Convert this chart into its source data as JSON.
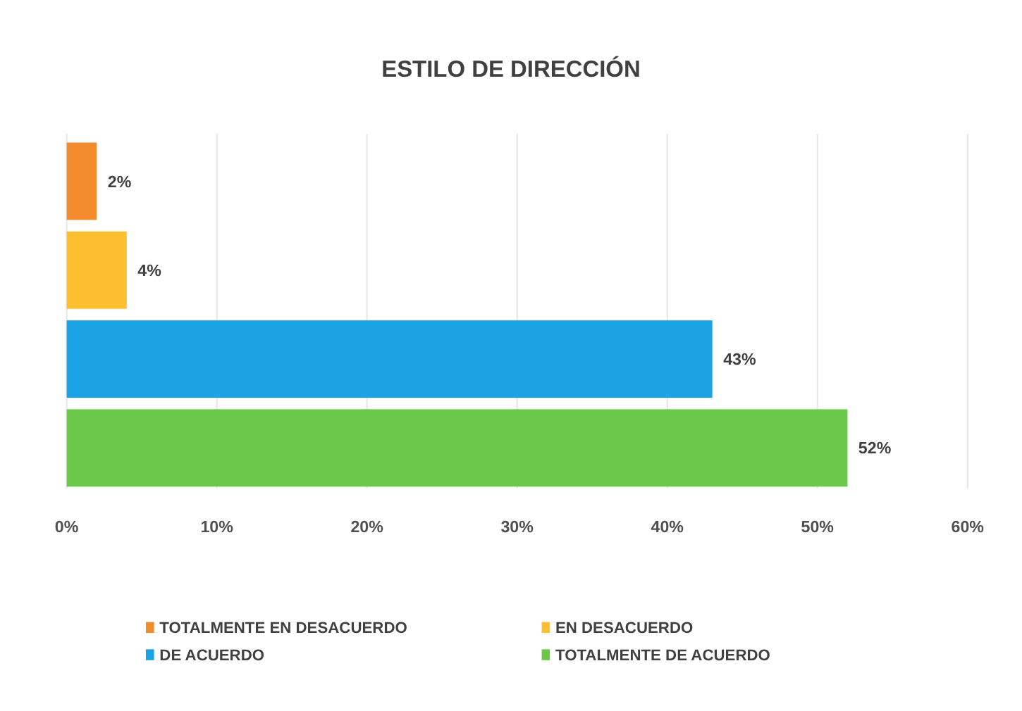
{
  "chart_data": {
    "type": "bar",
    "title": "ESTILO DE DIRECCIÓN",
    "orientation": "horizontal",
    "categories": [
      null,
      null,
      null,
      null
    ],
    "series": [
      {
        "name": "TOTALMENTE EN DESACUERDO",
        "color": "#f28a2e",
        "values": [
          2,
          null,
          null,
          null
        ],
        "value_labels": [
          "2%",
          null,
          null,
          null
        ]
      },
      {
        "name": "EN DESACUERDO",
        "color": "#fbbf2f",
        "values": [
          null,
          4,
          null,
          null
        ],
        "value_labels": [
          null,
          "4%",
          null,
          null
        ]
      },
      {
        "name": "DE ACUERDO",
        "color": "#1ca3e6",
        "values": [
          null,
          null,
          43,
          null
        ],
        "value_labels": [
          null,
          null,
          "43%",
          null
        ]
      },
      {
        "name": "TOTALMENTE DE ACUERDO",
        "color": "#6cc84a",
        "values": [
          null,
          null,
          null,
          52
        ],
        "value_labels": [
          null,
          null,
          null,
          "52%"
        ]
      }
    ],
    "xlim": [
      0,
      60
    ],
    "xticks": [
      {
        "value": 0,
        "label": "0%"
      },
      {
        "value": 10,
        "label": "10%"
      },
      {
        "value": 20,
        "label": "20%"
      },
      {
        "value": 30,
        "label": "30%"
      },
      {
        "value": 40,
        "label": "40%"
      },
      {
        "value": 50,
        "label": "50%"
      },
      {
        "value": 60,
        "label": "60%"
      }
    ],
    "grid": "x",
    "legend": "bottom"
  }
}
